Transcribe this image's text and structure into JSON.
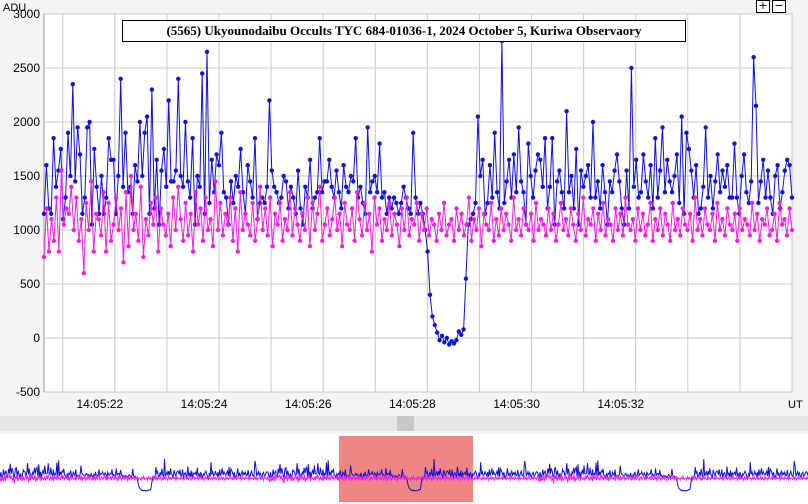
{
  "title": "(5565) Ukyounodaibu Occults TYC 684-01036-1, 2024 October 5, Kuriwa Observaory",
  "controls": {
    "zoom_in": "+",
    "zoom_out": "−"
  },
  "colors": {
    "series_blue": "#1010d8",
    "series_magenta": "#f020e0",
    "grid": "#c8c8c8",
    "overview_window": "#ef8585"
  },
  "chart_data": {
    "type": "line",
    "title": "(5565) Ukyounodaibu Occults TYC 684-01036-1, 2024 October 5, Kuriwa Observaory",
    "xlabel": "UT",
    "ylabel": "ADU",
    "ylim": [
      -500,
      3000
    ],
    "yticks": [
      "3000",
      "2500",
      "2000",
      "1500",
      "1000",
      "500",
      "0",
      "-500"
    ],
    "ytick_values": [
      3000,
      2500,
      2000,
      1500,
      1000,
      500,
      0,
      -500
    ],
    "xlim_seconds_after_14_05_20": [
      0.64,
      15.0
    ],
    "xticks": [
      "14:05:22",
      "14:05:24",
      "14:05:26",
      "14:05:28",
      "14:05:30",
      "14:05:32"
    ],
    "xtick_seconds_after_14_05_20": [
      2,
      4,
      6,
      8,
      10,
      12
    ],
    "grid": true,
    "series": [
      {
        "color": "#1010d8",
        "sample_interval_s": 0.0667,
        "values": [
          1150,
          1600,
          1200,
          1150,
          1850,
          1400,
          1550,
          1750,
          1100,
          1300,
          1900,
          1500,
          2350,
          1450,
          1950,
          1700,
          1150,
          1300,
          1950,
          2000,
          1050,
          1750,
          1400,
          1150,
          1500,
          1150,
          1300,
          1850,
          1650,
          1650,
          1150,
          1500,
          2400,
          1400,
          1900,
          1350,
          1400,
          1150,
          1600,
          1450,
          2000,
          1500,
          1900,
          2050,
          1150,
          2300,
          1200,
          1650,
          1050,
          1550,
          1750,
          1400,
          2200,
          1450,
          1450,
          1550,
          2400,
          1500,
          1400,
          2000,
          1450,
          1300,
          1850,
          1050,
          1500,
          1400,
          2450,
          1150,
          2650,
          1250,
          1650,
          1350,
          1700,
          1600,
          1900,
          1350,
          1300,
          1050,
          1450,
          1250,
          1500,
          1400,
          1750,
          1350,
          1150,
          1600,
          1450,
          1300,
          1850,
          1100,
          1250,
          1300,
          1250,
          1400,
          2200,
          1550,
          1400,
          1350,
          1250,
          1300,
          1500,
          1450,
          1200,
          1400,
          1300,
          1150,
          1550,
          1200,
          1050,
          1400,
          1300,
          1650,
          1200,
          1300,
          1350,
          1850,
          1350,
          1450,
          1450,
          1650,
          1400,
          1300,
          1550,
          1350,
          1200,
          1600,
          1400,
          1350,
          1500,
          1450,
          1850,
          1300,
          1400,
          1250,
          1150,
          1950,
          1350,
          1450,
          1500,
          1350,
          1800,
          1300,
          1350,
          1150,
          1300,
          1200,
          1300,
          1250,
          1150,
          1250,
          1400,
          1300,
          1200,
          1150,
          1900,
          1300,
          1150,
          1250,
          1150,
          1000,
          800,
          400,
          200,
          120,
          50,
          -20,
          20,
          -40,
          0,
          -60,
          -30,
          -50,
          -20,
          60,
          30,
          80,
          550,
          1050,
          1100,
          1150,
          1250,
          2050,
          1500,
          1650,
          1150,
          1250,
          1600,
          1300,
          1900,
          1350,
          1200,
          2750,
          1250,
          1450,
          1650,
          1300,
          1700,
          1350,
          1950,
          1450,
          1350,
          1050,
          1800,
          1500,
          1300,
          1550,
          1700,
          1650,
          1400,
          1850,
          1200,
          1400,
          1850,
          1050,
          1450,
          1550,
          1350,
          1200,
          2100,
          1350,
          1500,
          1200,
          1750,
          1050,
          1550,
          1400,
          1500,
          1600,
          1300,
          2000,
          1300,
          1450,
          1200,
          1600,
          1350,
          1050,
          1450,
          1350,
          1550,
          1700,
          1450,
          1200,
          1050,
          1550,
          1200,
          2500,
          1400,
          1650,
          1300,
          1350,
          1700,
          1450,
          1300,
          1600,
          1200,
          1850,
          1300,
          1550,
          1950,
          1350,
          1650,
          1450,
          1350,
          1500,
          1700,
          1250,
          2050,
          1150,
          1900,
          1750,
          1550,
          1300,
          1600,
          1150,
          1200,
          1400,
          1950,
          1300,
          1500,
          1200,
          1450,
          1700,
          1350,
          1550,
          1400,
          1600,
          1300,
          1300,
          1800,
          1300,
          1150,
          1500,
          1700,
          1350,
          1250,
          1450,
          2600,
          2150,
          1250,
          1450,
          1650,
          1300,
          1550,
          1300,
          1150,
          1500,
          1600,
          1200,
          1350,
          1550,
          1650,
          1600,
          1300
        ]
      },
      {
        "color": "#f020e0",
        "sample_interval_s": 0.0667,
        "values": [
          750,
          1200,
          800,
          1100,
          900,
          1300,
          800,
          1550,
          1050,
          1200,
          1150,
          1400,
          1000,
          1300,
          900,
          1100,
          600,
          1250,
          1000,
          1450,
          800,
          1150,
          1100,
          950,
          1350,
          800,
          1250,
          900,
          1050,
          1300,
          1000,
          1200,
          700,
          1350,
          850,
          1500,
          1000,
          1150,
          900,
          1400,
          750,
          1100,
          950,
          1250,
          1050,
          1300,
          800,
          1200,
          1050,
          950,
          1150,
          850,
          1300,
          1000,
          1400,
          1100,
          900,
          1250,
          950,
          1150,
          800,
          1350,
          1050,
          1200,
          900,
          1300,
          1000,
          1100,
          850,
          1450,
          1000,
          1250,
          950,
          1150,
          1050,
          1300,
          900,
          1200,
          800,
          1350,
          1000,
          1150,
          1050,
          950,
          1250,
          900,
          1100,
          1400,
          1000,
          1200,
          950,
          1300,
          850,
          1150,
          1050,
          1250,
          900,
          1100,
          1000,
          1350,
          950,
          1200,
          1050,
          900,
          1150,
          1000,
          1300,
          850,
          1250,
          1000,
          1150,
          1400,
          900,
          1050,
          1200,
          950,
          1100,
          1300,
          1000,
          1150,
          850,
          1250,
          1050,
          1000,
          1200,
          900,
          1350,
          1100,
          950,
          1250,
          1000,
          1150,
          800,
          1300,
          1050,
          1200,
          900,
          1100,
          1000,
          1250,
          950,
          1150,
          1050,
          850,
          1200,
          1000,
          1300,
          950,
          1100,
          1050,
          1250,
          900,
          1150,
          1000,
          1200,
          950,
          1100,
          1050,
          900,
          1150,
          1000,
          1250,
          950,
          1050,
          1100,
          900,
          1200,
          1000,
          1150,
          950,
          1050,
          1300,
          900,
          1100,
          1000,
          1200,
          850,
          1150,
          1050,
          1000,
          1250,
          900,
          1100,
          950,
          1200,
          1000,
          1150,
          1050,
          900,
          1300,
          1000,
          1100,
          950,
          1200,
          1050,
          1000,
          1150,
          900,
          1250,
          1000,
          1100,
          1050,
          950,
          1200,
          1000,
          1150,
          900,
          1050,
          1250,
          1000,
          1100,
          950,
          1200,
          1050,
          900,
          1150,
          1000,
          1300,
          950,
          1100,
          1050,
          1200,
          900,
          1150,
          1000,
          1250,
          950,
          1100,
          1050,
          900,
          1200,
          1000,
          1150,
          950,
          1300,
          1050,
          1000,
          1100,
          900,
          1200,
          1000,
          1150,
          950,
          1050,
          1250,
          900,
          1100,
          1000,
          1200,
          950,
          1150,
          1050,
          900,
          1250,
          1000,
          1100,
          950,
          1200,
          1050,
          1000,
          1150,
          900,
          1300,
          1000,
          1100,
          950,
          1200,
          1050,
          1000,
          1150,
          900,
          1250,
          1000,
          1100,
          950,
          1200,
          1050,
          1000,
          1150,
          900,
          1200,
          1000,
          1100,
          1050,
          950,
          1250,
          1000,
          1150,
          900,
          1100,
          1050,
          1200,
          950,
          1000,
          1150,
          900,
          1250,
          1050,
          1100,
          950,
          1200,
          1000
        ]
      }
    ]
  },
  "overview": {
    "window_start_fraction": 0.42,
    "window_end_fraction": 0.585
  }
}
